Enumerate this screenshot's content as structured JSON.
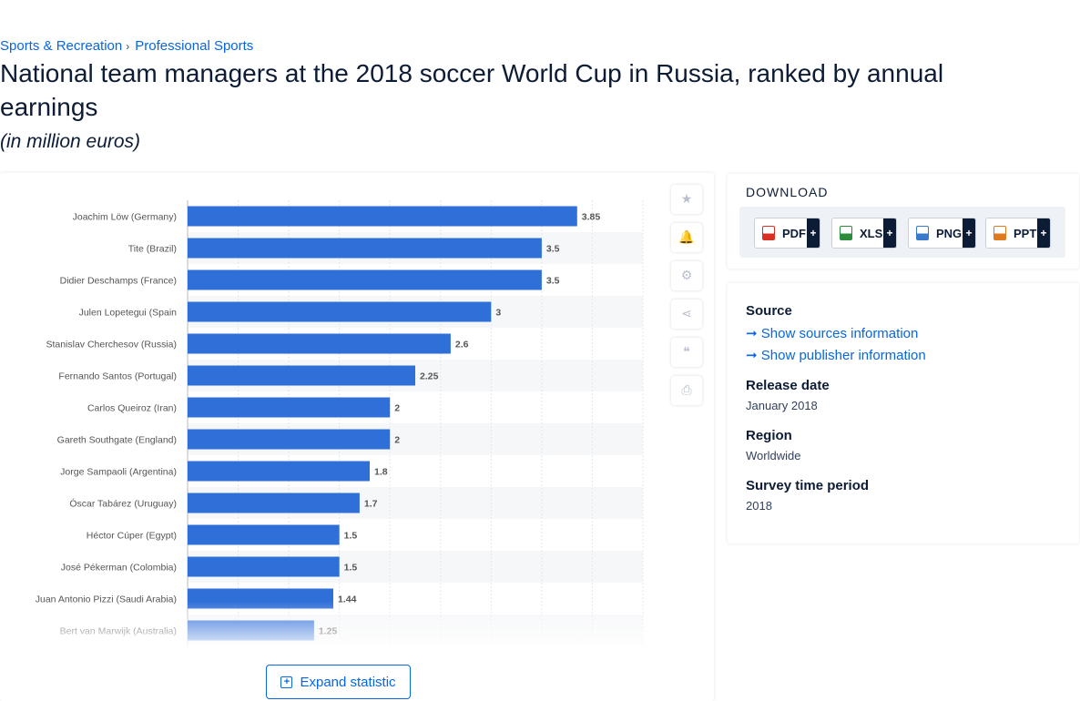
{
  "breadcrumb": {
    "item1": "Sports & Recreation",
    "separator": "›",
    "item2": "Professional Sports"
  },
  "title": "National team managers at the 2018 soccer World Cup in Russia, ranked by annual earnings",
  "subtitle": "(in million euros)",
  "colors": {
    "bar": "#2f6fd8",
    "label": "#555555",
    "value": "#555555",
    "grid": "#e3e6ea",
    "link": "#0666e5"
  },
  "chart_data": {
    "type": "bar",
    "orientation": "horizontal",
    "categories": [
      "Joachim Löw (Germany)",
      "Tite (Brazil)",
      "Didier Deschamps (France)",
      "Julen Lopetegui (Spain",
      "Stanislav Cherchesov (Russia)",
      "Fernando Santos (Portugal)",
      "Carlos Queiroz (Iran)",
      "Gareth Southgate (England)",
      "Jorge Sampaoli (Argentina)",
      "Óscar Tabárez (Uruguay)",
      "Héctor Cúper (Egypt)",
      "José Pékerman (Colombia)",
      "Juan Antonio Pizzi (Saudi Arabia)",
      "Bert van Marwijk (Australia)"
    ],
    "values": [
      3.85,
      3.5,
      3.5,
      3,
      2.6,
      2.25,
      2,
      2,
      1.8,
      1.7,
      1.5,
      1.5,
      1.44,
      1.25
    ],
    "value_labels": [
      "3.85",
      "3.5",
      "3.5",
      "3",
      "2.6",
      "2.25",
      "2",
      "2",
      "1.8",
      "1.7",
      "1.5",
      "1.5",
      "1.44",
      "1.25"
    ],
    "xlim": [
      0,
      4.5
    ],
    "grid": true,
    "title": "",
    "xlabel": "",
    "ylabel": ""
  },
  "tools": [
    {
      "name": "favorite",
      "icon": "star-icon",
      "glyph": "★"
    },
    {
      "name": "notification",
      "icon": "bell-icon",
      "glyph": "🔔"
    },
    {
      "name": "settings",
      "icon": "gear-icon",
      "glyph": "⚙"
    },
    {
      "name": "share",
      "icon": "share-icon",
      "glyph": "⋖"
    },
    {
      "name": "cite",
      "icon": "quote-icon",
      "glyph": "❝"
    },
    {
      "name": "print",
      "icon": "print-icon",
      "glyph": "⎙"
    }
  ],
  "expand_label": "Expand statistic",
  "download": {
    "heading": "DOWNLOAD",
    "plus": "+",
    "buttons": [
      {
        "label": "PDF",
        "icon": "pdf-file-icon",
        "color": "#d93025"
      },
      {
        "label": "XLS",
        "icon": "xls-file-icon",
        "color": "#2e8b3e"
      },
      {
        "label": "PNG",
        "icon": "png-file-icon",
        "color": "#3a78c9"
      },
      {
        "label": "PPT",
        "icon": "ppt-file-icon",
        "color": "#e07a1f"
      }
    ]
  },
  "meta": {
    "source_heading": "Source",
    "show_sources": "Show sources information",
    "show_publisher": "Show publisher information",
    "release_heading": "Release date",
    "release_value": "January 2018",
    "region_heading": "Region",
    "region_value": "Worldwide",
    "survey_heading": "Survey time period",
    "survey_value": "2018"
  }
}
